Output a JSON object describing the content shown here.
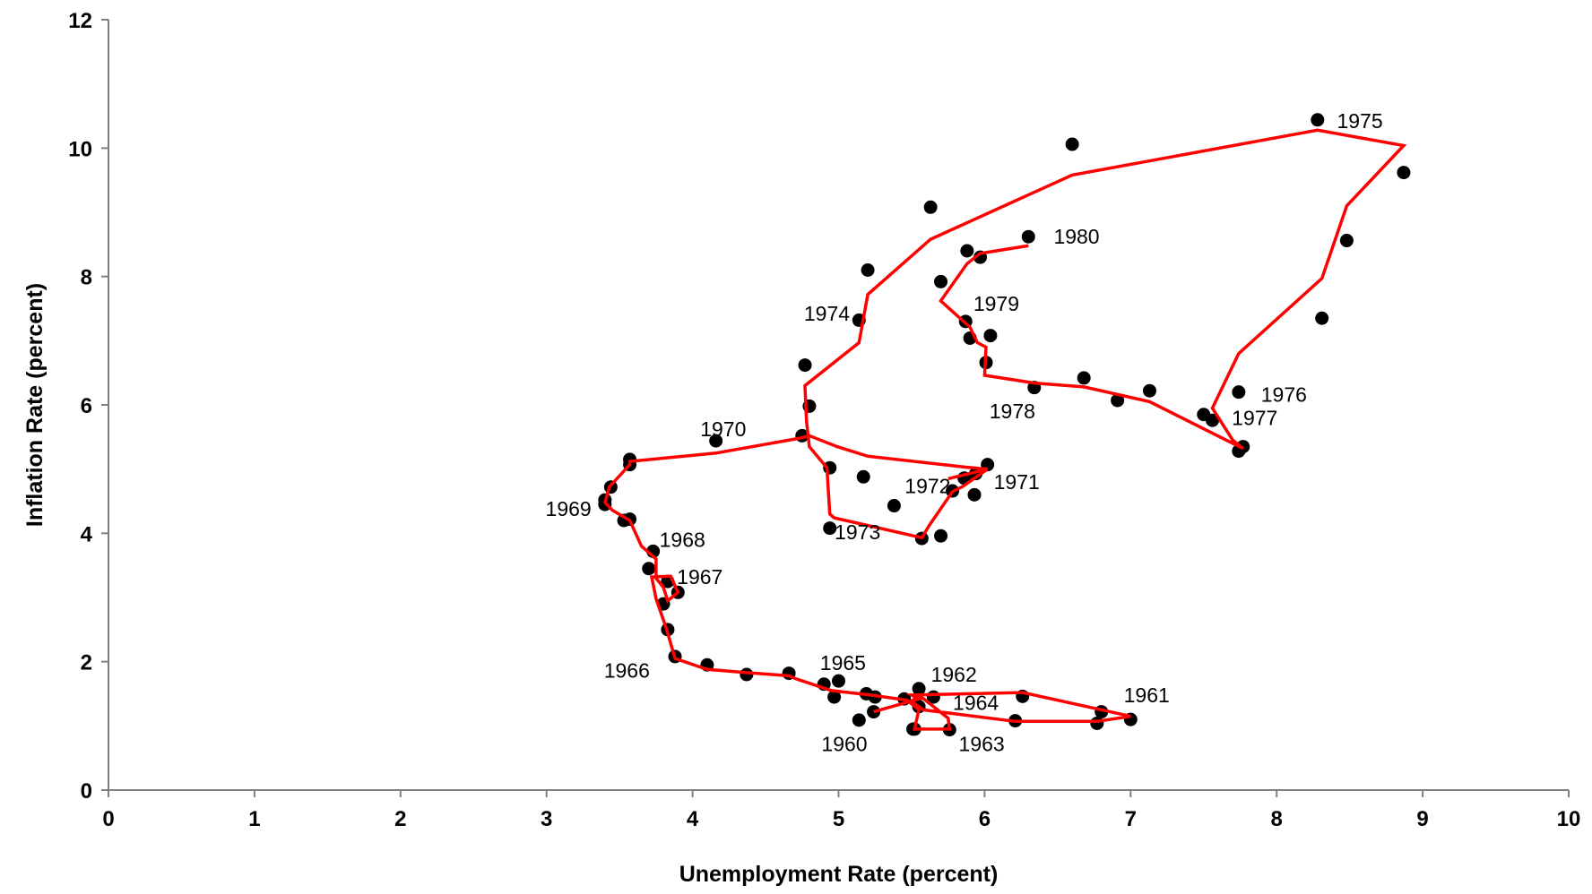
{
  "chart_data": {
    "type": "scatter",
    "xlabel": "Unemployment Rate (percent)",
    "ylabel": "Inflation Rate (percent)",
    "xlim": [
      0,
      10
    ],
    "ylim": [
      0,
      12
    ],
    "x_ticks": [
      "0",
      "1",
      "2",
      "3",
      "4",
      "5",
      "6",
      "7",
      "8",
      "9",
      "10"
    ],
    "y_ticks": [
      "0",
      "2",
      "4",
      "6",
      "8",
      "10",
      "12"
    ],
    "grid": false,
    "legend": "none",
    "colors": {
      "points": "#000000",
      "line": "#ff0000",
      "axes": "#7f7f7f"
    },
    "points": [
      [
        5.24,
        1.22
      ],
      [
        5.55,
        1.3
      ],
      [
        5.45,
        1.42
      ],
      [
        5.55,
        1.58
      ],
      [
        5.65,
        1.45
      ],
      [
        6.26,
        1.46
      ],
      [
        6.8,
        1.22
      ],
      [
        7.0,
        1.1
      ],
      [
        6.77,
        1.04
      ],
      [
        6.21,
        1.08
      ],
      [
        5.76,
        0.94
      ],
      [
        5.52,
        0.95
      ],
      [
        5.25,
        1.45
      ],
      [
        5.19,
        1.5
      ],
      [
        4.97,
        1.45
      ],
      [
        4.9,
        1.65
      ],
      [
        5.0,
        1.7
      ],
      [
        4.66,
        1.82
      ],
      [
        4.37,
        1.8
      ],
      [
        4.1,
        1.95
      ],
      [
        3.88,
        2.08
      ],
      [
        3.83,
        2.5
      ],
      [
        3.8,
        2.9
      ],
      [
        3.9,
        3.08
      ],
      [
        3.83,
        3.25
      ],
      [
        3.7,
        3.45
      ],
      [
        3.73,
        3.72
      ],
      [
        3.57,
        4.22
      ],
      [
        3.53,
        4.2
      ],
      [
        3.4,
        4.45
      ],
      [
        3.4,
        4.52
      ],
      [
        3.44,
        4.72
      ],
      [
        3.57,
        5.07
      ],
      [
        3.57,
        5.15
      ],
      [
        4.16,
        5.44
      ],
      [
        4.75,
        5.52
      ],
      [
        4.8,
        5.98
      ],
      [
        4.77,
        6.62
      ],
      [
        5.14,
        7.32
      ],
      [
        5.2,
        8.1
      ],
      [
        5.63,
        9.08
      ],
      [
        6.6,
        10.06
      ],
      [
        8.28,
        10.44
      ],
      [
        8.87,
        9.62
      ],
      [
        8.48,
        8.56
      ],
      [
        8.31,
        7.35
      ],
      [
        7.74,
        6.2
      ],
      [
        7.77,
        5.35
      ],
      [
        7.74,
        5.28
      ],
      [
        7.56,
        5.76
      ],
      [
        7.5,
        5.85
      ],
      [
        6.91,
        6.07
      ],
      [
        7.13,
        6.22
      ],
      [
        6.68,
        6.42
      ],
      [
        6.34,
        6.27
      ],
      [
        6.01,
        6.66
      ],
      [
        6.04,
        7.08
      ],
      [
        5.9,
        7.04
      ],
      [
        5.87,
        7.3
      ],
      [
        5.7,
        7.92
      ],
      [
        5.88,
        8.4
      ],
      [
        5.97,
        8.3
      ],
      [
        6.3,
        8.62
      ],
      [
        6.02,
        5.07
      ],
      [
        5.94,
        4.93
      ],
      [
        5.86,
        4.86
      ],
      [
        5.93,
        4.6
      ],
      [
        5.78,
        4.66
      ],
      [
        5.38,
        4.43
      ],
      [
        5.17,
        4.88
      ],
      [
        4.94,
        5.02
      ],
      [
        4.94,
        4.08
      ],
      [
        5.57,
        3.92
      ],
      [
        5.7,
        3.96
      ],
      [
        5.14,
        1.09
      ],
      [
        5.51,
        0.95
      ]
    ],
    "line": [
      [
        5.24,
        1.22
      ],
      [
        5.55,
        1.42
      ],
      [
        5.5,
        1.48
      ],
      [
        6.26,
        1.52
      ],
      [
        7.0,
        1.15
      ],
      [
        6.77,
        1.07
      ],
      [
        6.21,
        1.07
      ],
      [
        5.58,
        1.25
      ],
      [
        5.5,
        1.38
      ],
      [
        5.55,
        1.48
      ],
      [
        5.75,
        1.12
      ],
      [
        5.76,
        0.95
      ],
      [
        5.52,
        0.95
      ],
      [
        5.55,
        1.25
      ],
      [
        5.47,
        1.4
      ],
      [
        5.22,
        1.48
      ],
      [
        4.95,
        1.55
      ],
      [
        4.7,
        1.74
      ],
      [
        4.66,
        1.78
      ],
      [
        4.37,
        1.83
      ],
      [
        4.1,
        1.88
      ],
      [
        3.88,
        2.05
      ],
      [
        3.82,
        2.52
      ],
      [
        3.75,
        2.98
      ],
      [
        3.72,
        3.32
      ],
      [
        3.85,
        3.33
      ],
      [
        3.9,
        3.08
      ],
      [
        3.83,
        2.95
      ],
      [
        3.8,
        3.16
      ],
      [
        3.75,
        3.3
      ],
      [
        3.75,
        3.6
      ],
      [
        3.65,
        3.8
      ],
      [
        3.57,
        4.2
      ],
      [
        3.45,
        4.36
      ],
      [
        3.4,
        4.48
      ],
      [
        3.43,
        4.72
      ],
      [
        3.57,
        5.07
      ],
      [
        3.57,
        5.12
      ],
      [
        4.16,
        5.25
      ],
      [
        4.73,
        5.48
      ],
      [
        4.8,
        5.52
      ],
      [
        4.99,
        5.35
      ],
      [
        5.2,
        5.2
      ],
      [
        5.87,
        5.03
      ],
      [
        6.02,
        5.0
      ],
      [
        5.75,
        4.85
      ],
      [
        6.02,
        5.0
      ],
      [
        5.85,
        4.73
      ],
      [
        5.78,
        4.65
      ],
      [
        5.62,
        4.12
      ],
      [
        5.57,
        3.93
      ],
      [
        4.97,
        4.24
      ],
      [
        4.94,
        4.3
      ],
      [
        4.92,
        5.02
      ],
      [
        4.8,
        5.35
      ],
      [
        4.78,
        5.75
      ],
      [
        4.77,
        6.3
      ],
      [
        5.14,
        6.97
      ],
      [
        5.2,
        7.72
      ],
      [
        5.63,
        8.58
      ],
      [
        6.6,
        9.58
      ],
      [
        8.28,
        10.28
      ],
      [
        8.87,
        10.04
      ],
      [
        8.48,
        9.1
      ],
      [
        8.31,
        7.97
      ],
      [
        7.74,
        6.8
      ],
      [
        7.56,
        5.95
      ],
      [
        7.7,
        5.45
      ],
      [
        7.77,
        5.32
      ],
      [
        7.13,
        6.05
      ],
      [
        6.68,
        6.28
      ],
      [
        6.34,
        6.34
      ],
      [
        6.0,
        6.46
      ],
      [
        6.01,
        6.9
      ],
      [
        5.95,
        6.97
      ],
      [
        5.9,
        7.21
      ],
      [
        5.7,
        7.62
      ],
      [
        5.88,
        8.2
      ],
      [
        5.97,
        8.36
      ],
      [
        6.3,
        8.48
      ]
    ],
    "year_labels": [
      {
        "text": "1960",
        "x": 5.04,
        "y": 0.72
      },
      {
        "text": "1961",
        "x": 7.11,
        "y": 1.48
      },
      {
        "text": "1962",
        "x": 5.79,
        "y": 1.8
      },
      {
        "text": "1963",
        "x": 5.98,
        "y": 0.72
      },
      {
        "text": "1964",
        "x": 5.94,
        "y": 1.36
      },
      {
        "text": "1965",
        "x": 5.03,
        "y": 1.98
      },
      {
        "text": "1966",
        "x": 3.55,
        "y": 1.86
      },
      {
        "text": "1967",
        "x": 4.05,
        "y": 3.32
      },
      {
        "text": "1968",
        "x": 3.93,
        "y": 3.9
      },
      {
        "text": "1969",
        "x": 3.15,
        "y": 4.38
      },
      {
        "text": "1970",
        "x": 4.21,
        "y": 5.62
      },
      {
        "text": "1971",
        "x": 6.22,
        "y": 4.8
      },
      {
        "text": "1972",
        "x": 5.61,
        "y": 4.74
      },
      {
        "text": "1973",
        "x": 5.13,
        "y": 4.02
      },
      {
        "text": "1974",
        "x": 4.92,
        "y": 7.42
      },
      {
        "text": "1975",
        "x": 8.57,
        "y": 10.42
      },
      {
        "text": "1976",
        "x": 8.05,
        "y": 6.16
      },
      {
        "text": "1977",
        "x": 7.85,
        "y": 5.8
      },
      {
        "text": "1978",
        "x": 6.19,
        "y": 5.9
      },
      {
        "text": "1979",
        "x": 6.08,
        "y": 7.58
      },
      {
        "text": "1980",
        "x": 6.63,
        "y": 8.62
      }
    ]
  }
}
